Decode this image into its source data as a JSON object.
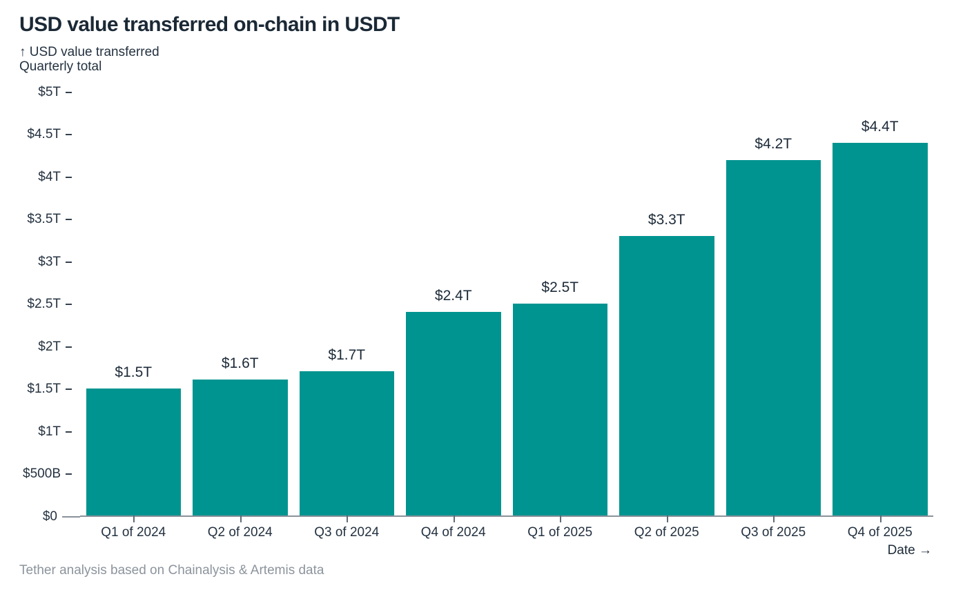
{
  "header": {
    "title": "USD value transferred on-chain in USDT",
    "y_axis_label_line1": "↑ USD value transferred",
    "y_axis_label_line2": "Quarterly total"
  },
  "footer": {
    "source": "Tether analysis based on Chainalysis & Artemis data",
    "x_axis_label": "Date →"
  },
  "colors": {
    "bar": "#009490",
    "title": "#1B2936",
    "text": "#243240",
    "value": "#1C2A38",
    "muted": "#8C949C",
    "axis": "#8A9199"
  },
  "chart_data": {
    "type": "bar",
    "title": "USD value transferred on-chain in USDT",
    "ylabel": "USD value transferred — Quarterly total",
    "xlabel": "Date",
    "categories": [
      "Q1 of 2024",
      "Q2 of 2024",
      "Q3 of 2024",
      "Q4 of 2024",
      "Q1 of 2025",
      "Q2 of 2025",
      "Q3 of 2025",
      "Q4 of 2025"
    ],
    "values_trillions": [
      1.5,
      1.6,
      1.7,
      2.4,
      2.5,
      3.3,
      4.2,
      4.4
    ],
    "bar_labels": [
      "$1.5T",
      "$1.6T",
      "$1.7T",
      "$2.4T",
      "$2.5T",
      "$3.3T",
      "$4.2T",
      "$4.4T"
    ],
    "ylim": [
      0,
      5
    ],
    "yticks": [
      {
        "value": 0,
        "label": "$0"
      },
      {
        "value": 0.5,
        "label": "$500B"
      },
      {
        "value": 1,
        "label": "$1T"
      },
      {
        "value": 1.5,
        "label": "$1.5T"
      },
      {
        "value": 2,
        "label": "$2T"
      },
      {
        "value": 2.5,
        "label": "$2.5T"
      },
      {
        "value": 3,
        "label": "$3T"
      },
      {
        "value": 3.5,
        "label": "$3.5T"
      },
      {
        "value": 4,
        "label": "$4T"
      },
      {
        "value": 4.5,
        "label": "$4.5T"
      },
      {
        "value": 5,
        "label": "$5T"
      }
    ],
    "grid": false,
    "legend": false
  }
}
